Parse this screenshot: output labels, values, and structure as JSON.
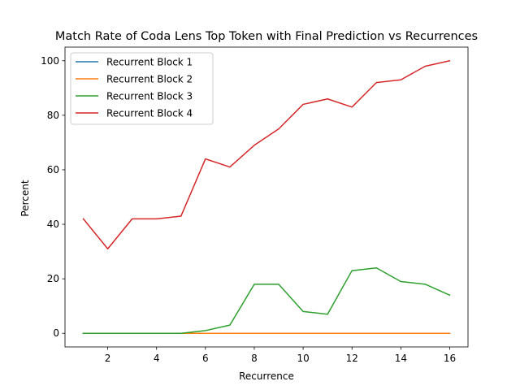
{
  "chart_data": {
    "type": "line",
    "title": "Match Rate of Coda Lens Top Token with Final Prediction vs Recurrences",
    "xlabel": "Recurrence",
    "ylabel": "Percent",
    "xlim": [
      0.25,
      16.75
    ],
    "ylim": [
      -5,
      105
    ],
    "xticks": [
      2,
      4,
      6,
      8,
      10,
      12,
      14,
      16
    ],
    "yticks": [
      0,
      20,
      40,
      60,
      80,
      100
    ],
    "grid": false,
    "legend_position": "upper-left",
    "x": [
      1,
      2,
      3,
      4,
      5,
      6,
      7,
      8,
      9,
      10,
      11,
      12,
      13,
      14,
      15,
      16
    ],
    "series": [
      {
        "name": "Recurrent Block 1",
        "color": "#1f77b4",
        "values": [
          0,
          0,
          0,
          0,
          0,
          0,
          0,
          0,
          0,
          0,
          0,
          0,
          0,
          0,
          0,
          0
        ]
      },
      {
        "name": "Recurrent Block 2",
        "color": "#ff7f0e",
        "values": [
          0,
          0,
          0,
          0,
          0,
          0,
          0,
          0,
          0,
          0,
          0,
          0,
          0,
          0,
          0,
          0
        ]
      },
      {
        "name": "Recurrent Block 3",
        "color": "#2ca02c",
        "values": [
          0,
          0,
          0,
          0,
          0,
          1,
          3,
          18,
          18,
          8,
          7,
          23,
          24,
          19,
          18,
          14
        ]
      },
      {
        "name": "Recurrent Block 4",
        "color": "#d62728",
        "values": [
          42,
          31,
          42,
          42,
          43,
          64,
          61,
          69,
          75,
          84,
          86,
          83,
          92,
          93,
          98,
          100
        ]
      }
    ]
  }
}
